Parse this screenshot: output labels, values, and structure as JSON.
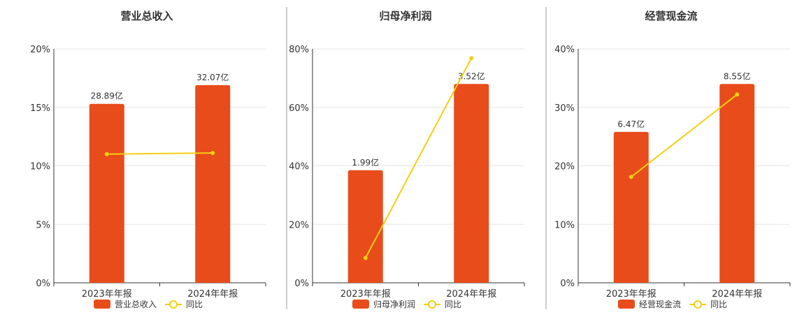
{
  "colors": {
    "bar": "#e84c1a",
    "line": "#f3cf12",
    "grid": "#e6e6e6",
    "axis": "#333333",
    "divider": "#999999"
  },
  "chart_data": [
    {
      "type": "bar",
      "title": "营业总收入",
      "categories": [
        "2023年年报",
        "2024年年报"
      ],
      "series": [
        {
          "name": "营业总收入",
          "type": "bar",
          "values": [
            15.3,
            16.9
          ],
          "labels": [
            "28.89亿",
            "32.07亿"
          ]
        },
        {
          "name": "同比",
          "type": "line",
          "values": [
            11.0,
            11.1
          ]
        }
      ],
      "yticks": [
        "0%",
        "5%",
        "10%",
        "15%",
        "20%"
      ],
      "ylim": [
        0,
        20
      ],
      "grid": true,
      "legend": "bottom"
    },
    {
      "type": "bar",
      "title": "归母净利润",
      "categories": [
        "2023年年报",
        "2024年年报"
      ],
      "series": [
        {
          "name": "归母净利润",
          "type": "bar",
          "values": [
            38.5,
            68.0
          ],
          "labels": [
            "1.99亿",
            "3.52亿"
          ]
        },
        {
          "name": "同比",
          "type": "line",
          "values": [
            8.5,
            76.8
          ]
        }
      ],
      "yticks": [
        "0%",
        "20%",
        "40%",
        "60%",
        "80%"
      ],
      "ylim": [
        0,
        80
      ],
      "grid": true,
      "legend": "bottom"
    },
    {
      "type": "bar",
      "title": "经营现金流",
      "categories": [
        "2023年年报",
        "2024年年报"
      ],
      "series": [
        {
          "name": "经营现金流",
          "type": "bar",
          "values": [
            25.8,
            34.0
          ],
          "labels": [
            "6.47亿",
            "8.55亿"
          ]
        },
        {
          "name": "同比",
          "type": "line",
          "values": [
            18.1,
            32.2
          ]
        }
      ],
      "yticks": [
        "0%",
        "10%",
        "20%",
        "30%",
        "40%"
      ],
      "ylim": [
        0,
        40
      ],
      "grid": true,
      "legend": "bottom"
    }
  ]
}
